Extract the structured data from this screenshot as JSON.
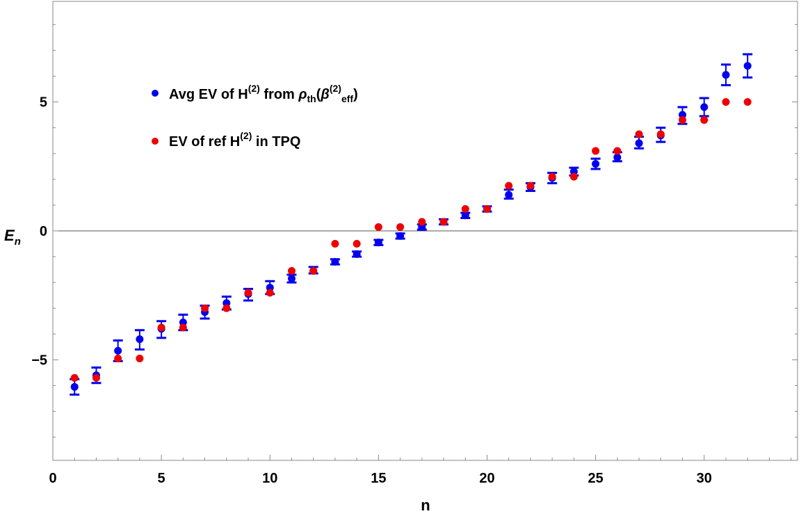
{
  "chart_data": {
    "type": "scatter",
    "title": "",
    "xlabel": "n",
    "ylabel_main": "E",
    "ylabel_sub": "n",
    "xlim": [
      0,
      34.3
    ],
    "ylim": [
      -8.9,
      8.9
    ],
    "x_ticks": [
      0,
      5,
      10,
      15,
      20,
      25,
      30
    ],
    "y_ticks": [
      -5,
      0,
      5
    ],
    "y_tick_labels": [
      "−5",
      "0",
      "5"
    ],
    "grid": false,
    "zero_line": true,
    "legend_placement": "top-left",
    "legend": {
      "avg": {
        "prefix": "Avg EV of H",
        "sup1": "(2)",
        "middle": " from ",
        "rho": "ρ",
        "rho_sub": "th",
        "open_paren": "(",
        "beta": "β",
        "sup2": "(2)",
        "eff_sub": "eff",
        "close_paren": ")"
      },
      "ref": {
        "prefix": "EV of ref H",
        "sup": "(2)",
        "suffix": " in TPQ"
      }
    },
    "series": [
      {
        "key": "avg",
        "color": "#0000ee",
        "x": [
          1,
          2,
          3,
          4,
          5,
          6,
          7,
          8,
          9,
          10,
          11,
          12,
          13,
          14,
          15,
          16,
          17,
          18,
          19,
          20,
          21,
          22,
          23,
          24,
          25,
          26,
          27,
          28,
          29,
          30,
          31,
          32
        ],
        "y": [
          -6.05,
          -5.6,
          -4.65,
          -4.2,
          -3.8,
          -3.55,
          -3.15,
          -2.8,
          -2.45,
          -2.2,
          -1.85,
          -1.55,
          -1.2,
          -0.9,
          -0.45,
          -0.2,
          0.15,
          0.35,
          0.6,
          0.85,
          1.4,
          1.7,
          2.05,
          2.3,
          2.6,
          2.85,
          3.4,
          3.7,
          4.5,
          4.8,
          6.05,
          6.4
        ],
        "err_low": [
          -6.35,
          -5.9,
          -5.05,
          -4.6,
          -4.15,
          -3.85,
          -3.4,
          -3.05,
          -2.7,
          -2.45,
          -2.0,
          -1.65,
          -1.3,
          -1.0,
          -0.55,
          -0.3,
          0.05,
          0.25,
          0.5,
          0.75,
          1.25,
          1.55,
          1.85,
          2.15,
          2.4,
          2.7,
          3.2,
          3.45,
          4.15,
          4.45,
          5.65,
          5.95
        ],
        "err_high": [
          -5.75,
          -5.3,
          -4.25,
          -3.85,
          -3.5,
          -3.25,
          -2.9,
          -2.55,
          -2.25,
          -1.95,
          -1.7,
          -1.4,
          -1.1,
          -0.8,
          -0.35,
          -0.1,
          0.25,
          0.45,
          0.7,
          0.95,
          1.6,
          1.85,
          2.25,
          2.45,
          2.8,
          3.05,
          3.65,
          4.0,
          4.8,
          5.15,
          6.45,
          6.85
        ]
      },
      {
        "key": "ref",
        "color": "#ee0000",
        "x": [
          1,
          2,
          3,
          4,
          5,
          6,
          7,
          8,
          9,
          10,
          11,
          12,
          13,
          14,
          15,
          16,
          17,
          18,
          19,
          20,
          21,
          22,
          23,
          24,
          25,
          26,
          27,
          28,
          29,
          30,
          31,
          32
        ],
        "y": [
          -5.7,
          -5.7,
          -4.95,
          -4.95,
          -3.75,
          -3.75,
          -3.0,
          -3.0,
          -2.4,
          -2.4,
          -1.55,
          -1.55,
          -0.5,
          -0.5,
          0.15,
          0.15,
          0.35,
          0.35,
          0.85,
          0.85,
          1.75,
          1.75,
          2.1,
          2.1,
          3.1,
          3.1,
          3.75,
          3.75,
          4.3,
          4.3,
          5.0,
          5.0
        ]
      }
    ]
  }
}
